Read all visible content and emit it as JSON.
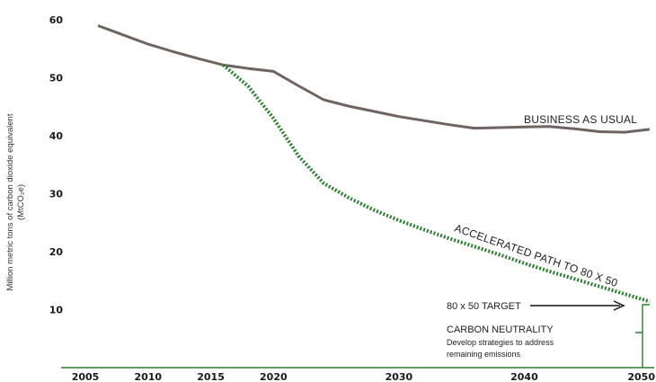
{
  "chart_data": {
    "type": "line",
    "ylabel_line1": "Million metric tons of carbon dioxide equivalent",
    "ylabel_line2": "(MtCO₂e)",
    "xlim": [
      2005,
      2050
    ],
    "ylim": [
      0,
      60
    ],
    "x_ticks": [
      {
        "value": 2005,
        "label": "2005"
      },
      {
        "value": 2010,
        "label": "2010"
      },
      {
        "value": 2015,
        "label": "2015"
      },
      {
        "value": 2020,
        "label": "2020"
      },
      {
        "value": 2030,
        "label": "2030"
      },
      {
        "value": 2040,
        "label": "2040"
      },
      {
        "value": 2050,
        "label": "2050"
      }
    ],
    "y_ticks": [
      {
        "value": 10,
        "label": "10"
      },
      {
        "value": 20,
        "label": "20"
      },
      {
        "value": 30,
        "label": "30"
      },
      {
        "value": 40,
        "label": "40"
      },
      {
        "value": 50,
        "label": "50"
      },
      {
        "value": 60,
        "label": "60"
      }
    ],
    "series": [
      {
        "name": "BUSINESS AS USUAL",
        "color": "#6e6560",
        "style": "solid",
        "x": [
          2006,
          2008,
          2010,
          2012,
          2014,
          2016,
          2018,
          2020,
          2022,
          2024,
          2026,
          2028,
          2030,
          2032,
          2034,
          2036,
          2038,
          2040,
          2042,
          2044,
          2046,
          2048,
          2050
        ],
        "y": [
          59.0,
          57.4,
          55.8,
          54.5,
          53.3,
          52.2,
          51.6,
          51.1,
          48.6,
          46.2,
          45.1,
          44.2,
          43.3,
          42.6,
          41.9,
          41.3,
          41.4,
          41.5,
          41.6,
          41.2,
          40.7,
          40.6,
          41.1
        ]
      },
      {
        "name": "ACCELERATED PATH TO 80 X 50",
        "color": "#2e7d32",
        "style": "dotted",
        "x": [
          2016,
          2018,
          2020,
          2022,
          2024,
          2026,
          2028,
          2030,
          2032,
          2034,
          2036,
          2038,
          2040,
          2042,
          2044,
          2046,
          2048,
          2050
        ],
        "y": [
          52.2,
          48.5,
          43.0,
          36.5,
          31.8,
          29.3,
          27.2,
          25.4,
          23.8,
          22.3,
          20.9,
          19.5,
          18.0,
          16.6,
          15.3,
          14.0,
          12.7,
          11.4
        ]
      }
    ],
    "annotations": {
      "target_label": "80 x 50 TARGET",
      "neutrality_label": "CARBON NEUTRALITY",
      "neutrality_desc_line1": "Develop strategies to address",
      "neutrality_desc_line2": "remaining emissions",
      "accent_color": "#2e7d32"
    }
  }
}
